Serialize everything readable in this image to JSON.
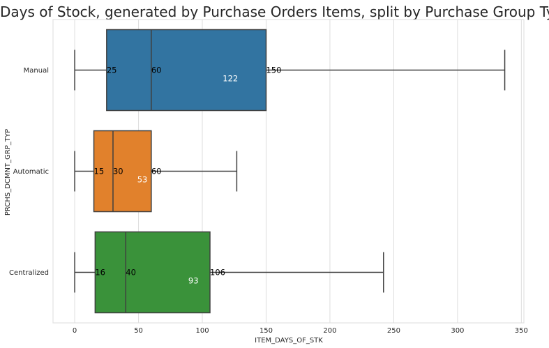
{
  "chart_data": {
    "type": "box",
    "title": "Days of Stock, generated by Purchase Orders Items, split by Purchase Group Type",
    "xlabel": "ITEM_DAYS_OF_STK",
    "ylabel": "PRCHS_DCMNT_GRP_TYP",
    "xlim": [
      -17,
      352
    ],
    "xticks": [
      0,
      50,
      100,
      150,
      200,
      250,
      300,
      350
    ],
    "grid": "vertical",
    "categories": [
      "Manual",
      "Automatic",
      "Centralized"
    ],
    "series": [
      {
        "name": "Manual",
        "color": "#3274a1",
        "whisker_low": 0,
        "q1": 25,
        "median": 60,
        "q3": 150,
        "whisker_high": 337,
        "mean": 122,
        "labels": {
          "q1": "25",
          "median": "60",
          "q3": "150",
          "mean": "122"
        },
        "mean_label_color": "#ffffff"
      },
      {
        "name": "Automatic",
        "color": "#e1812c",
        "whisker_low": 0,
        "q1": 15,
        "median": 30,
        "q3": 60,
        "whisker_high": 127,
        "mean": 53,
        "labels": {
          "q1": "15",
          "median": "30",
          "q3": "60",
          "mean": "53"
        },
        "mean_label_color": "#ffffff"
      },
      {
        "name": "Centralized",
        "color": "#3a923a",
        "whisker_low": 0,
        "q1": 16,
        "median": 40,
        "q3": 106,
        "whisker_high": 242,
        "mean": 93,
        "labels": {
          "q1": "16",
          "median": "40",
          "q3": "106",
          "mean": "93"
        },
        "mean_label_color": "#ffffff"
      }
    ],
    "annotation_color": "#000000",
    "grid_color": "#dddddd",
    "line_color": "#3f3f3f"
  }
}
